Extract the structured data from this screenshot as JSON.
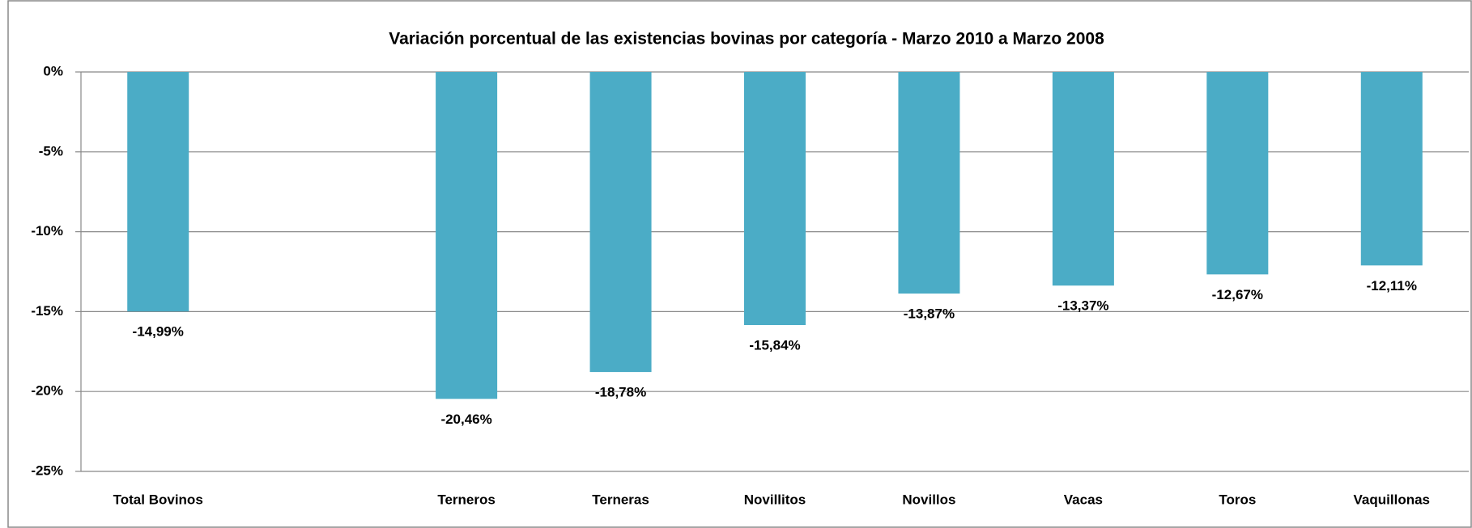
{
  "chart_data": {
    "type": "bar",
    "title": "Variación porcentual de las existencias bovinas por categoría - Marzo 2010 a Marzo 2008",
    "categories": [
      "Total Bovinos",
      null,
      "Terneros",
      "Terneras",
      "Novillitos",
      "Novillos",
      "Vacas",
      "Toros",
      "Vaquillonas"
    ],
    "values": [
      -14.99,
      null,
      -20.46,
      -18.78,
      -15.84,
      -13.87,
      -13.37,
      -12.67,
      -12.11
    ],
    "value_labels": [
      "-14,99%",
      null,
      "-20,46%",
      "-18,78%",
      "-15,84%",
      "-13,87%",
      "-13,37%",
      "-12,67%",
      "-12,11%"
    ],
    "color": "#4bacc6",
    "ylim": [
      -25,
      0
    ],
    "yticks": [
      {
        "value": 0,
        "label": "0%"
      },
      {
        "value": -5,
        "label": "-5%"
      },
      {
        "value": -10,
        "label": "-10%"
      },
      {
        "value": -15,
        "label": "-15%"
      },
      {
        "value": -20,
        "label": "-20%"
      },
      {
        "value": -25,
        "label": "-25%"
      }
    ],
    "grid": true
  }
}
